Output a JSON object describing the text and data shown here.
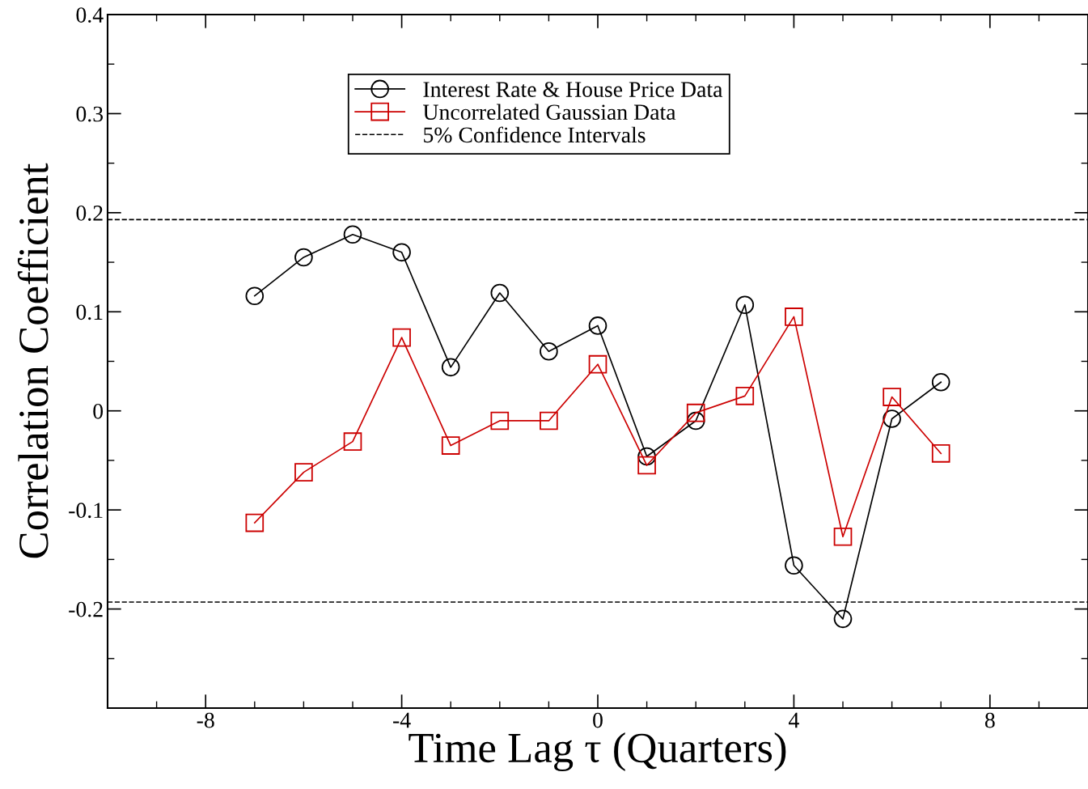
{
  "chart_data": {
    "type": "line",
    "xlabel": "Time Lag τ (Quarters)",
    "ylabel": "Correlation Coefficient",
    "x": [
      -7,
      -6,
      -5,
      -4,
      -3,
      -2,
      -1,
      0,
      1,
      2,
      3,
      4,
      5,
      6,
      7
    ],
    "series": [
      {
        "name": "Interest Rate & House Price Data",
        "color": "#000000",
        "marker": "circle",
        "values": [
          0.116,
          0.155,
          0.178,
          0.16,
          0.044,
          0.119,
          0.06,
          0.086,
          -0.046,
          -0.01,
          0.107,
          -0.156,
          -0.21,
          -0.008,
          0.029
        ]
      },
      {
        "name": "Uncorrelated Gaussian Data",
        "color": "#cc0000",
        "marker": "square",
        "values": [
          -0.113,
          -0.062,
          -0.031,
          0.074,
          -0.035,
          -0.01,
          -0.01,
          0.047,
          -0.055,
          -0.002,
          0.015,
          0.095,
          -0.127,
          0.014,
          -0.043
        ]
      }
    ],
    "ref_lines": [
      {
        "axis": "y",
        "value": 0.193,
        "label": "5% Confidence Intervals",
        "color": "#000000",
        "line_style": "dashed"
      },
      {
        "axis": "y",
        "value": -0.193,
        "color": "#000000",
        "line_style": "dashed"
      }
    ],
    "xlim": [
      -10,
      10
    ],
    "xticks": [
      -8,
      -4,
      0,
      4,
      8
    ],
    "ylim": [
      -0.3,
      0.4
    ],
    "yticks": [
      -0.2,
      -0.1,
      0,
      0.1,
      0.2,
      0.3,
      0.4
    ],
    "grid": false,
    "legend": "top",
    "line_style": "solid"
  }
}
